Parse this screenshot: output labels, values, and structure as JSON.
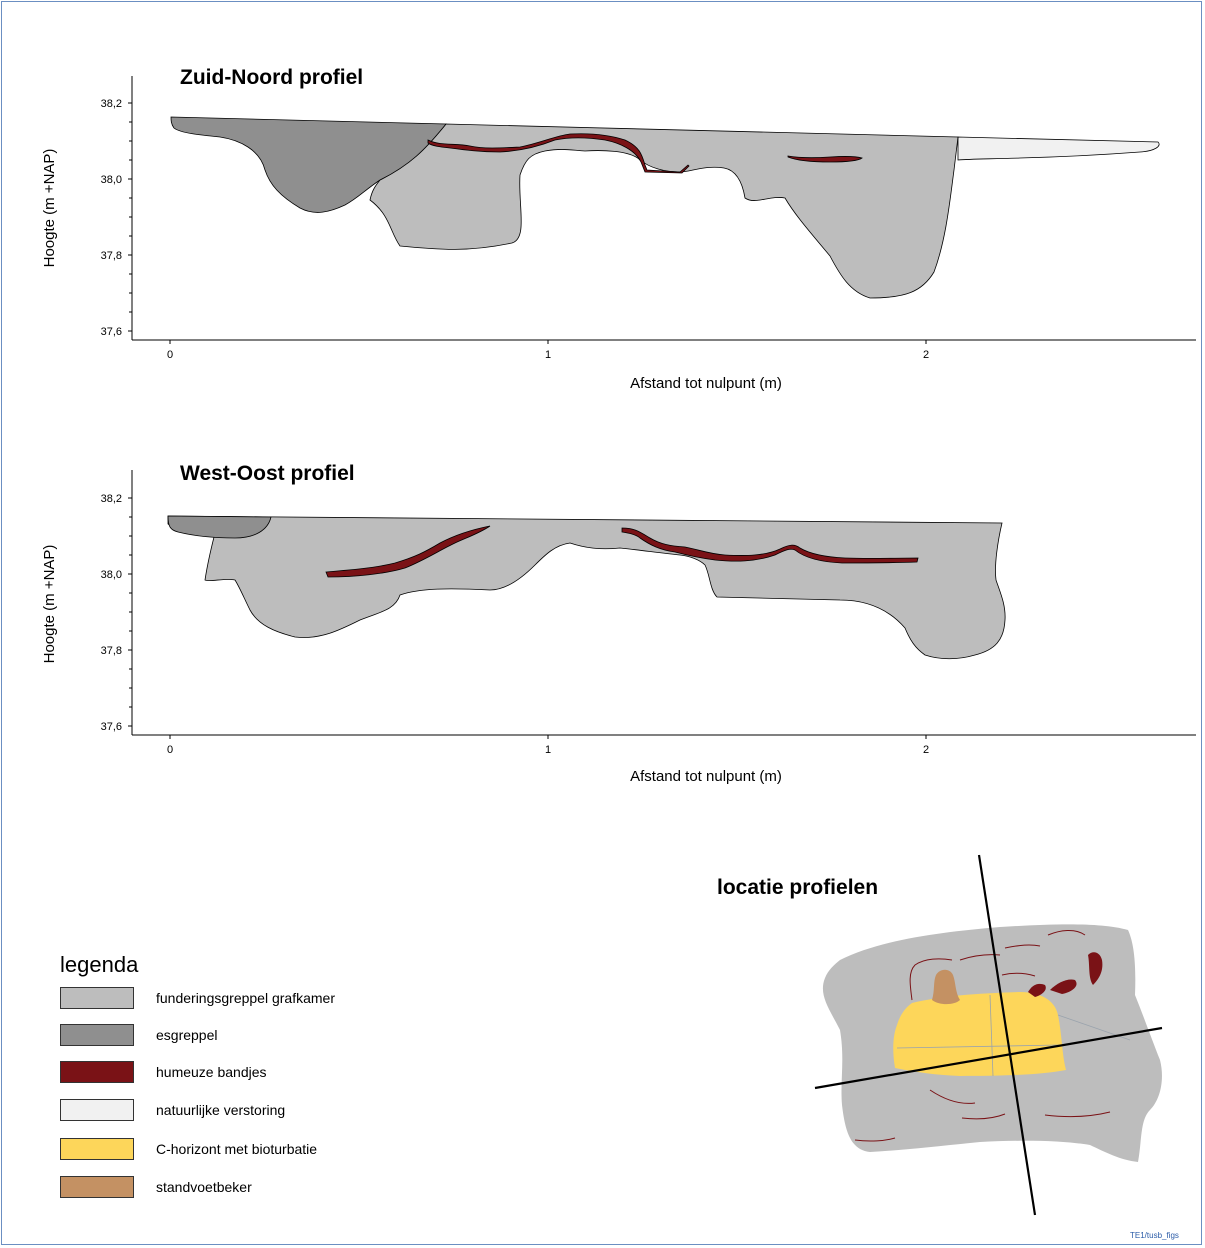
{
  "colors": {
    "funderingsgreppel": "#bdbdbd",
    "esgreppel": "#8f8f8f",
    "humeus": "#7a1216",
    "natuurlijk": "#f1f1f1",
    "c_horizont": "#fdd65a",
    "standvoet": "#c49163",
    "frame": "#6b8fc2"
  },
  "profiles": [
    {
      "title": "Zuid-Noord profiel",
      "ylabel": "Hoogte (m +NAP)",
      "xlabel": "Afstand tot nulpunt (m)",
      "yticks": [
        "38,2",
        "38,0",
        "37,8",
        "37,6"
      ],
      "xticks": [
        "0",
        "1",
        "2"
      ]
    },
    {
      "title": "West-Oost profiel",
      "ylabel": "Hoogte (m +NAP)",
      "xlabel": "Afstand tot nulpunt (m)",
      "yticks": [
        "38,2",
        "38,0",
        "37,8",
        "37,6"
      ],
      "xticks": [
        "0",
        "1",
        "2"
      ]
    }
  ],
  "legend": {
    "title": "legenda",
    "items": [
      {
        "label": "funderingsgreppel grafkamer",
        "color": "#bdbdbd"
      },
      {
        "label": "esgreppel",
        "color": "#8f8f8f"
      },
      {
        "label": "humeuze bandjes",
        "color": "#7a1216"
      },
      {
        "label": "natuurlijke verstoring",
        "color": "#f1f1f1"
      },
      {
        "label": "C-horizont met bioturbatie",
        "color": "#fdd65a"
      },
      {
        "label": "standvoetbeker",
        "color": "#c49163"
      }
    ]
  },
  "map": {
    "title": "locatie profielen"
  },
  "credit": "TE1/tusb_figs"
}
